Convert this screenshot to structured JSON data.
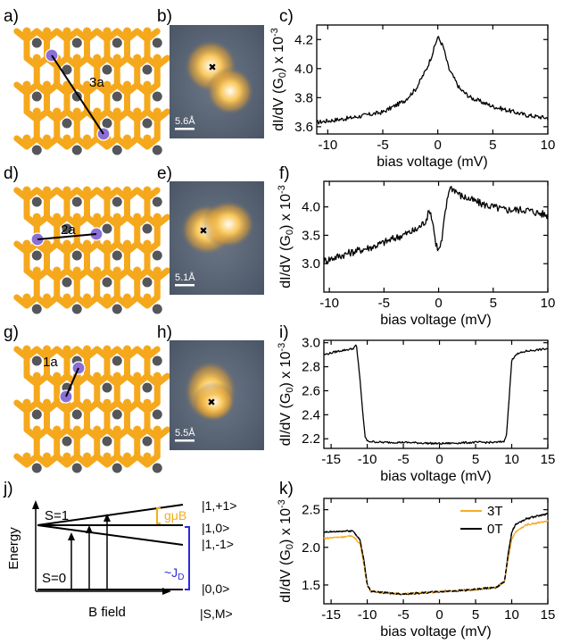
{
  "panel_labels": {
    "a": "a)",
    "b": "b)",
    "c": "c)",
    "d": "d)",
    "e": "e)",
    "f": "f)",
    "g": "g)",
    "h": "h)",
    "i": "i)",
    "j": "j)",
    "k": "k)"
  },
  "lattice": {
    "a": {
      "label": "3a"
    },
    "d": {
      "label": "2a"
    },
    "g": {
      "label": "1a"
    }
  },
  "stm": {
    "b": {
      "scale": "5.6Å"
    },
    "e": {
      "scale": "5.1Å"
    },
    "h": {
      "scale": "5.5Å"
    }
  },
  "colors": {
    "lattice_gold": "#f5a81c",
    "atom_dark": "#55565a",
    "adatom": "#8a6fd6",
    "stm_bg": "#596575",
    "stm_glow": "#f3b640",
    "energy_gap": "#2a2ae0",
    "zeeman": "#f2ae1a",
    "line_3T": "#f4ad2a"
  },
  "axes_common": {
    "xlabel": "bias voltage (mV)",
    "ylabel_main": "dI/dV (G",
    "ylabel_sub": "0",
    "ylabel_tail": ") x 10",
    "ylabel_exp": "-3"
  },
  "chart_data": [
    {
      "panel": "c",
      "type": "line",
      "xlim": [
        -11,
        10
      ],
      "ylim": [
        3.55,
        4.3
      ],
      "xticks": [
        -10,
        -5,
        0,
        5,
        10
      ],
      "yticks": [
        3.6,
        3.8,
        4.0,
        4.2
      ],
      "ytick_labels": [
        "3.6",
        "3.8",
        "4.0",
        "4.2"
      ],
      "series": [
        {
          "x": [
            -11,
            -8,
            -5,
            -3,
            -2,
            -1,
            -0.5,
            0,
            0.5,
            1,
            2,
            3,
            5,
            7,
            8,
            10
          ],
          "y": [
            3.63,
            3.66,
            3.7,
            3.78,
            3.86,
            4.0,
            4.1,
            4.22,
            4.15,
            4.0,
            3.86,
            3.8,
            3.74,
            3.7,
            3.68,
            3.66
          ]
        }
      ]
    },
    {
      "panel": "f",
      "type": "line",
      "xlim": [
        -10.5,
        10
      ],
      "ylim": [
        2.5,
        4.45
      ],
      "xticks": [
        -10,
        -5,
        0,
        5,
        10
      ],
      "yticks": [
        3.0,
        3.5,
        4.0
      ],
      "ytick_labels": [
        "3.0",
        "3.5",
        "4.0"
      ],
      "series": [
        {
          "x": [
            -10.5,
            -8,
            -6,
            -4,
            -2,
            -1.2,
            -0.8,
            -0.5,
            -0.3,
            0,
            0.3,
            0.6,
            1,
            1.5,
            2,
            4,
            6,
            8,
            10
          ],
          "y": [
            3.05,
            3.2,
            3.3,
            3.45,
            3.6,
            3.75,
            3.95,
            3.7,
            3.4,
            3.22,
            3.4,
            3.9,
            4.35,
            4.3,
            4.2,
            4.05,
            3.95,
            3.95,
            3.85
          ]
        }
      ]
    },
    {
      "panel": "i",
      "type": "line",
      "xlim": [
        -16,
        15
      ],
      "ylim": [
        2.12,
        3.02
      ],
      "xticks": [
        -15,
        -10,
        -5,
        0,
        5,
        10,
        15
      ],
      "yticks": [
        2.2,
        2.4,
        2.6,
        2.8,
        3.0
      ],
      "ytick_labels": [
        "2.2",
        "2.4",
        "2.6",
        "2.8",
        "3.0"
      ],
      "series": [
        {
          "x": [
            -16,
            -14,
            -12,
            -11.5,
            -11,
            -10.6,
            -10.3,
            -10,
            -8,
            -5,
            0,
            5,
            8,
            9,
            9.3,
            9.6,
            10,
            10.5,
            12,
            15
          ],
          "y": [
            2.9,
            2.93,
            2.95,
            2.98,
            2.7,
            2.4,
            2.22,
            2.18,
            2.17,
            2.17,
            2.16,
            2.17,
            2.17,
            2.18,
            2.25,
            2.5,
            2.85,
            2.9,
            2.93,
            2.95
          ]
        }
      ]
    },
    {
      "panel": "k",
      "type": "line",
      "xlim": [
        -16,
        15
      ],
      "ylim": [
        1.25,
        2.65
      ],
      "xticks": [
        -15,
        -10,
        -5,
        0,
        5,
        10,
        15
      ],
      "yticks": [
        1.5,
        2.0,
        2.5
      ],
      "ytick_labels": [
        "1.5",
        "2.0",
        "2.5"
      ],
      "series": [
        {
          "name": "3T",
          "x": [
            -16,
            -12,
            -11,
            -10.5,
            -10,
            -9.5,
            -8,
            -5,
            0,
            5,
            8,
            9,
            9.5,
            10,
            10.5,
            12,
            15
          ],
          "y": [
            2.12,
            2.15,
            2.05,
            1.8,
            1.5,
            1.42,
            1.4,
            1.38,
            1.41,
            1.44,
            1.47,
            1.55,
            1.85,
            2.1,
            2.2,
            2.3,
            2.35
          ]
        },
        {
          "name": "0T",
          "x": [
            -16,
            -12,
            -11,
            -10.5,
            -10,
            -9.5,
            -8,
            -5,
            0,
            5,
            8,
            9,
            9.5,
            10,
            10.5,
            12,
            15
          ],
          "y": [
            2.2,
            2.22,
            2.1,
            1.85,
            1.5,
            1.42,
            1.4,
            1.38,
            1.41,
            1.44,
            1.47,
            1.55,
            1.9,
            2.2,
            2.3,
            2.38,
            2.45
          ]
        }
      ]
    }
  ],
  "energy_diagram": {
    "panel": "j",
    "ylabel": "Energy",
    "xlabel": "B field",
    "s1": "S=1",
    "s0": "S=0",
    "zeeman_label": "gμB",
    "exchange_label": "~J",
    "exchange_sub": "D",
    "levels": [
      "|1,+1>",
      "|1,0>",
      "|1,-1>",
      "|0,0>"
    ],
    "state_label": "|S,M>"
  }
}
